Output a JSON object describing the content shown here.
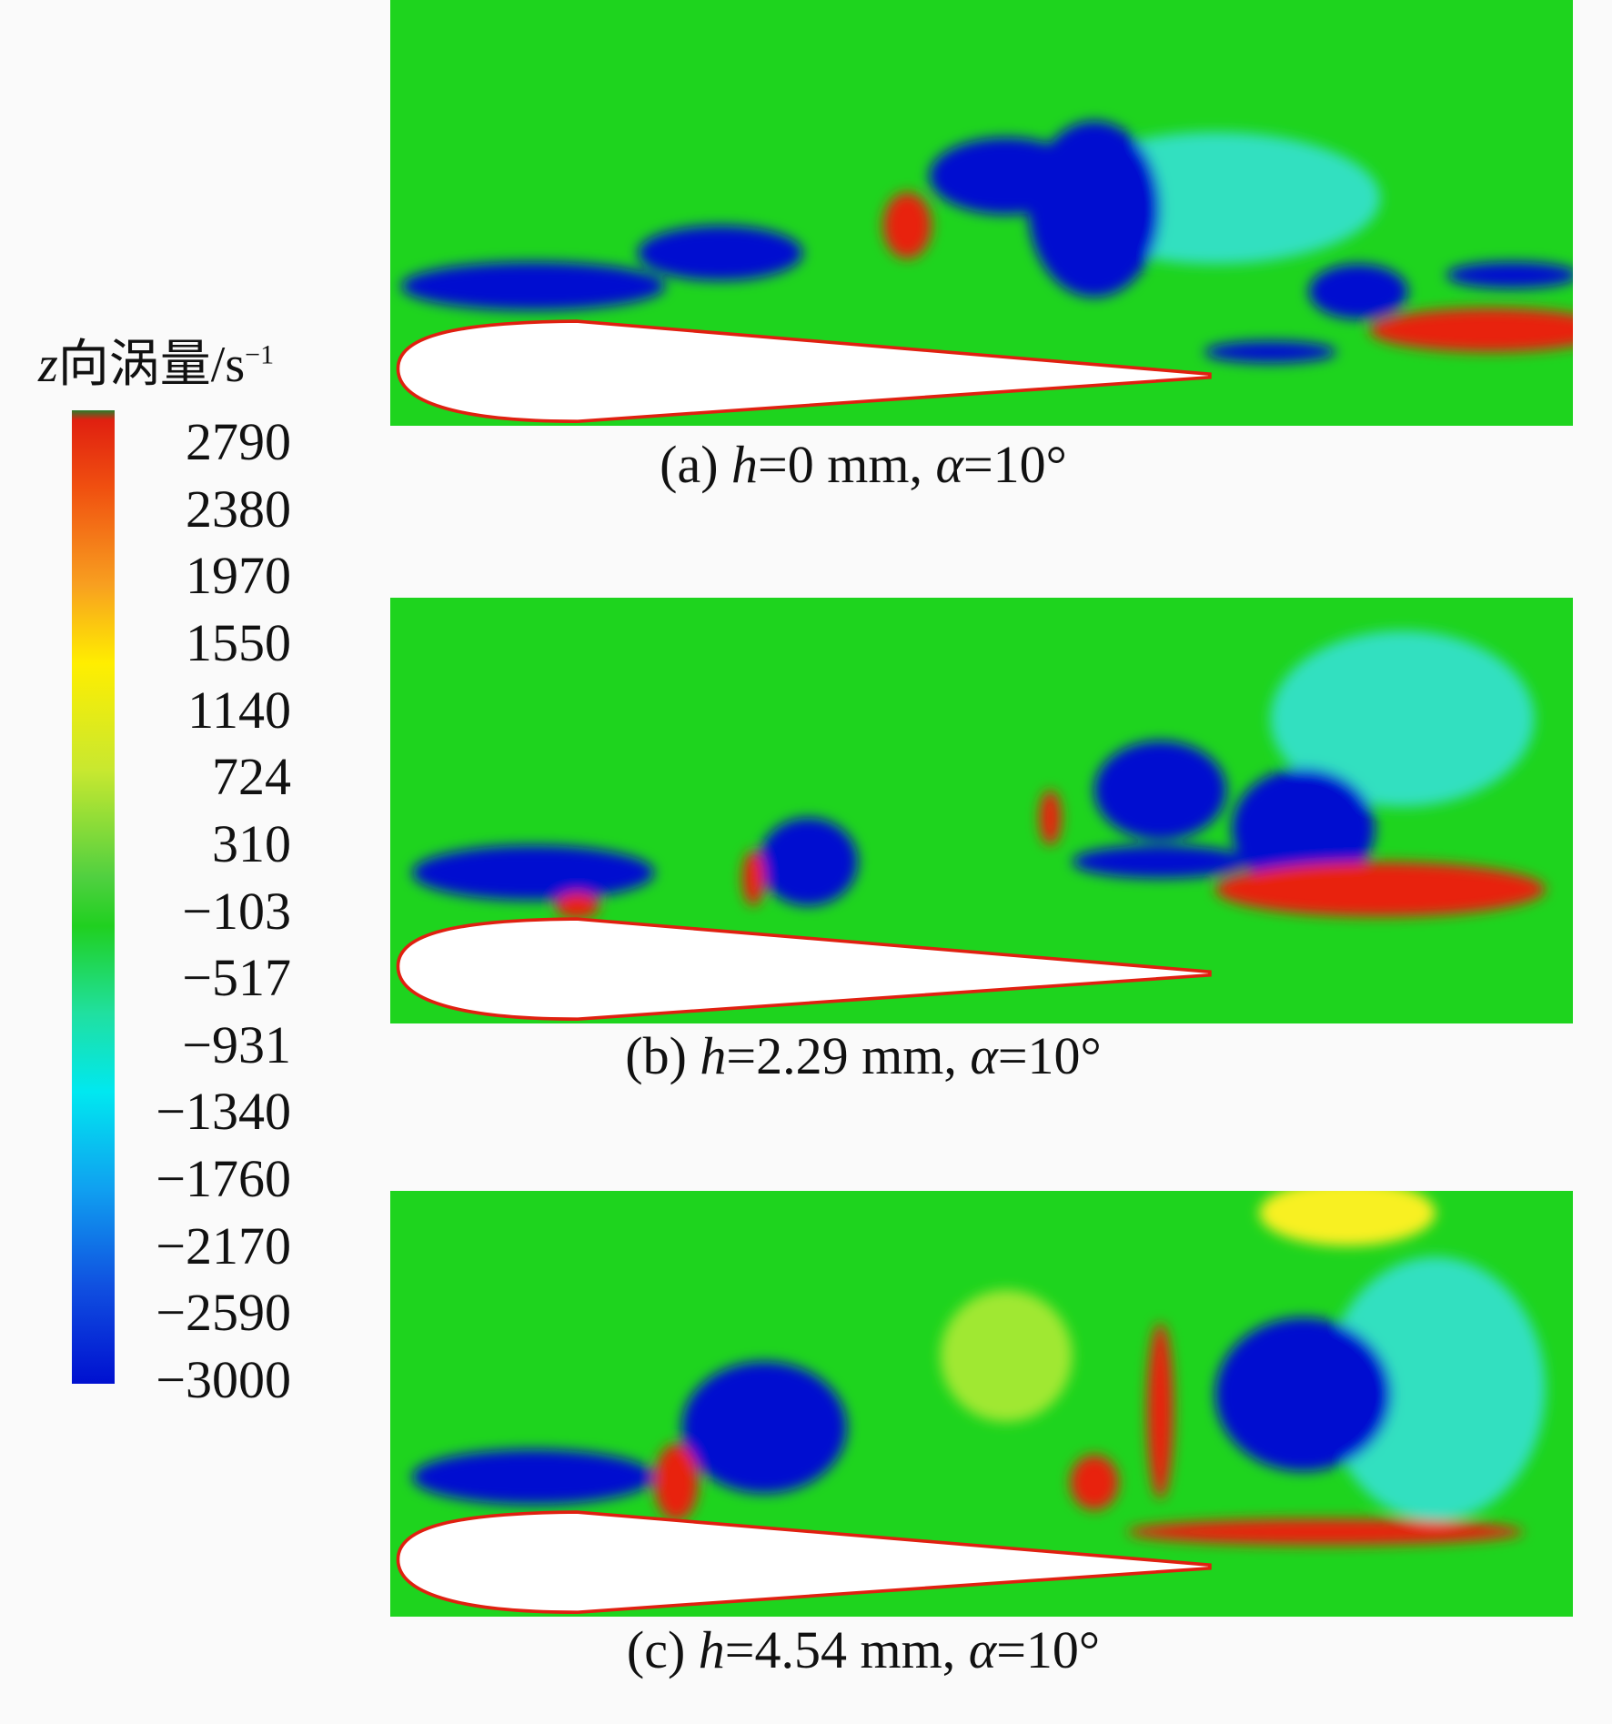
{
  "colorbar": {
    "title": {
      "var": "z",
      "text": "向涡量/s",
      "sup": "−1"
    },
    "ticks": [
      "2790",
      "2380",
      "1970",
      "1550",
      "1140",
      "724",
      "310",
      "−103",
      "−517",
      "−931",
      "−1340",
      "−1760",
      "−2170",
      "−2590",
      "−3000"
    ]
  },
  "panels": [
    {
      "label": "(a)",
      "var": "h",
      "value": "=0 mm,",
      "angle_var": "α",
      "angle_value": "=10°"
    },
    {
      "label": "(b)",
      "var": "h",
      "value": "=2.29 mm,",
      "angle_var": "α",
      "angle_value": "=10°"
    },
    {
      "label": "(c)",
      "var": "h",
      "value": "=4.54 mm,",
      "angle_var": "α",
      "angle_value": "=10°"
    }
  ]
}
